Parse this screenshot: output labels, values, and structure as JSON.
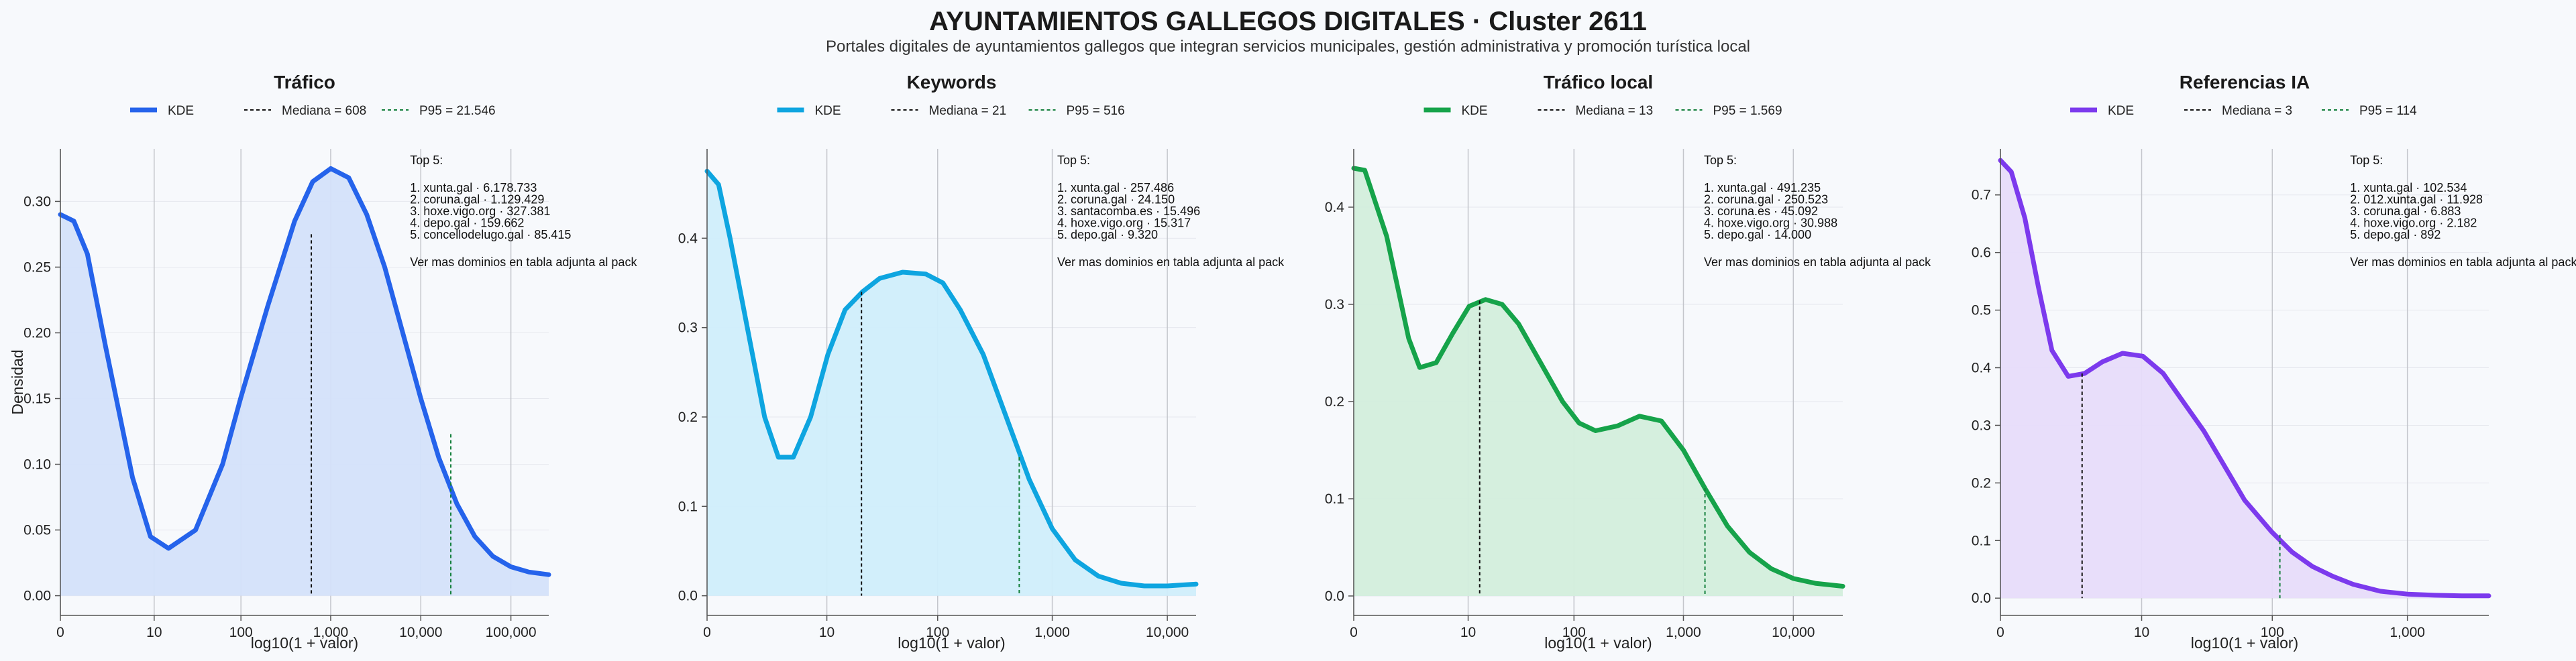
{
  "header": {
    "title": "AYUNTAMIENTOS GALLEGOS DIGITALES · Cluster 2611",
    "subtitle": "Portales digitales de ayuntamientos gallegos que integran servicios municipales, gestión administrativa y promoción turística local"
  },
  "chart_data": [
    {
      "type": "area",
      "title": "Tráfico",
      "xlabel": "log10(1 + valor)",
      "ylabel": "Densidad",
      "color": "#2563eb",
      "fill": "#d4e1fa",
      "xlim": [
        0,
        5.42
      ],
      "ylim": [
        -0.015,
        0.34
      ],
      "xticks": [
        0,
        1.041,
        2.004,
        3.0,
        4.0,
        5.0
      ],
      "xtick_labels": [
        "0",
        "10",
        "100",
        "1,000",
        "10,000",
        "100,000"
      ],
      "yticks": [
        0,
        0.05,
        0.1,
        0.15,
        0.2,
        0.25,
        0.3
      ],
      "ytick_labels": [
        "0.00",
        "0.05",
        "0.10",
        "0.15",
        "0.20",
        "0.25",
        "0.30"
      ],
      "series": [
        {
          "name": "KDE",
          "x": [
            0,
            0.15,
            0.3,
            0.5,
            0.8,
            1.0,
            1.2,
            1.5,
            1.8,
            2.0,
            2.3,
            2.6,
            2.8,
            3.0,
            3.2,
            3.4,
            3.6,
            3.8,
            4.0,
            4.2,
            4.4,
            4.6,
            4.8,
            5.0,
            5.2,
            5.42
          ],
          "y": [
            0.29,
            0.285,
            0.26,
            0.19,
            0.09,
            0.045,
            0.036,
            0.05,
            0.1,
            0.15,
            0.22,
            0.285,
            0.315,
            0.325,
            0.318,
            0.29,
            0.25,
            0.2,
            0.15,
            0.105,
            0.07,
            0.045,
            0.03,
            0.022,
            0.018,
            0.016
          ]
        }
      ],
      "median": {
        "label": "Mediana = 608",
        "x": 2.785,
        "y": 0.275
      },
      "p95": {
        "label": "P95 = 21.546",
        "x": 4.333,
        "y": 0.123
      },
      "annotation": {
        "heading": "Top 5:",
        "lines": [
          "1. xunta.gal · 6.178.733",
          "2. coruna.gal · 1.129.429",
          "3. hoxe.vigo.org · 327.381",
          "4. depo.gal · 159.662",
          "5. concellodelugo.gal · 85.415"
        ],
        "footer": "Ver mas dominios en tabla adjunta al pack"
      }
    },
    {
      "type": "area",
      "title": "Keywords",
      "xlabel": "log10(1 + valor)",
      "ylabel": "",
      "color": "#0ea5e0",
      "fill": "#d0eefb",
      "xlim": [
        0,
        4.25
      ],
      "ylim": [
        -0.022,
        0.5
      ],
      "xticks": [
        0,
        1.041,
        2.004,
        3.0,
        4.0
      ],
      "xtick_labels": [
        "0",
        "10",
        "100",
        "1,000",
        "10,000"
      ],
      "yticks": [
        0,
        0.1,
        0.2,
        0.3,
        0.4
      ],
      "ytick_labels": [
        "0.0",
        "0.1",
        "0.2",
        "0.3",
        "0.4"
      ],
      "series": [
        {
          "name": "KDE",
          "x": [
            0,
            0.1,
            0.2,
            0.35,
            0.5,
            0.62,
            0.75,
            0.9,
            1.05,
            1.2,
            1.35,
            1.5,
            1.7,
            1.9,
            2.05,
            2.2,
            2.4,
            2.6,
            2.8,
            3.0,
            3.2,
            3.4,
            3.6,
            3.8,
            4.0,
            4.25
          ],
          "y": [
            0.475,
            0.46,
            0.4,
            0.3,
            0.2,
            0.155,
            0.155,
            0.2,
            0.27,
            0.32,
            0.34,
            0.355,
            0.362,
            0.36,
            0.35,
            0.32,
            0.27,
            0.2,
            0.13,
            0.075,
            0.04,
            0.022,
            0.014,
            0.011,
            0.011,
            0.013
          ]
        }
      ],
      "median": {
        "label": "Mediana = 21",
        "x": 1.342,
        "y": 0.34
      },
      "p95": {
        "label": "P95 = 516",
        "x": 2.713,
        "y": 0.155
      },
      "annotation": {
        "heading": "Top 5:",
        "lines": [
          "1. xunta.gal · 257.486",
          "2. coruna.gal · 24.150",
          "3. santacomba.es · 15.496",
          "4. hoxe.vigo.org · 15.317",
          "5. depo.gal · 9.320"
        ],
        "footer": "Ver mas dominios en tabla adjunta al pack"
      }
    },
    {
      "type": "area",
      "title": "Tráfico local",
      "xlabel": "log10(1 + valor)",
      "ylabel": "",
      "color": "#16a34a",
      "fill": "#d3eedc",
      "xlim": [
        0,
        4.45
      ],
      "ylim": [
        -0.02,
        0.46
      ],
      "xticks": [
        0,
        1.041,
        2.004,
        3.0,
        4.0
      ],
      "xtick_labels": [
        "0",
        "10",
        "100",
        "1,000",
        "10,000"
      ],
      "yticks": [
        0,
        0.1,
        0.2,
        0.3,
        0.4
      ],
      "ytick_labels": [
        "0.0",
        "0.1",
        "0.2",
        "0.3",
        "0.4"
      ],
      "series": [
        {
          "name": "KDE",
          "x": [
            0,
            0.1,
            0.3,
            0.5,
            0.6,
            0.75,
            0.9,
            1.05,
            1.2,
            1.35,
            1.5,
            1.7,
            1.9,
            2.05,
            2.2,
            2.4,
            2.6,
            2.8,
            3.0,
            3.2,
            3.4,
            3.6,
            3.8,
            4.0,
            4.2,
            4.45
          ],
          "y": [
            0.44,
            0.438,
            0.37,
            0.265,
            0.235,
            0.24,
            0.27,
            0.298,
            0.305,
            0.3,
            0.28,
            0.24,
            0.2,
            0.178,
            0.17,
            0.175,
            0.185,
            0.18,
            0.15,
            0.11,
            0.072,
            0.045,
            0.028,
            0.018,
            0.013,
            0.01
          ]
        }
      ],
      "median": {
        "label": "Mediana = 13",
        "x": 1.146,
        "y": 0.304
      },
      "p95": {
        "label": "P95 = 1.569",
        "x": 3.196,
        "y": 0.111
      },
      "annotation": {
        "heading": "Top 5:",
        "lines": [
          "1. xunta.gal · 491.235",
          "2. coruna.gal · 250.523",
          "3. coruna.es · 45.092",
          "4. hoxe.vigo.org · 30.988",
          "5. depo.gal · 14.000"
        ],
        "footer": "Ver mas dominios en tabla adjunta al pack"
      }
    },
    {
      "type": "area",
      "title": "Referencias IA",
      "xlabel": "log10(1 + valor)",
      "ylabel": "",
      "color": "#7c3aed",
      "fill": "#e7dcfa",
      "xlim": [
        0,
        3.6
      ],
      "ylim": [
        -0.03,
        0.78
      ],
      "xticks": [
        0,
        1.041,
        2.004,
        3.0
      ],
      "xtick_labels": [
        "0",
        "10",
        "100",
        "1,000"
      ],
      "yticks": [
        0,
        0.1,
        0.2,
        0.3,
        0.4,
        0.5,
        0.6,
        0.7
      ],
      "ytick_labels": [
        "0.0",
        "0.1",
        "0.2",
        "0.3",
        "0.4",
        "0.5",
        "0.6",
        "0.7"
      ],
      "series": [
        {
          "name": "KDE",
          "x": [
            0,
            0.08,
            0.18,
            0.28,
            0.38,
            0.5,
            0.62,
            0.75,
            0.9,
            1.05,
            1.2,
            1.35,
            1.5,
            1.65,
            1.8,
            2.0,
            2.15,
            2.3,
            2.45,
            2.6,
            2.8,
            3.0,
            3.2,
            3.4,
            3.6
          ],
          "y": [
            0.76,
            0.74,
            0.66,
            0.54,
            0.43,
            0.385,
            0.39,
            0.41,
            0.425,
            0.42,
            0.39,
            0.34,
            0.29,
            0.23,
            0.17,
            0.115,
            0.08,
            0.055,
            0.038,
            0.024,
            0.012,
            0.007,
            0.005,
            0.004,
            0.004
          ]
        }
      ],
      "median": {
        "label": "Mediana = 3",
        "x": 0.602,
        "y": 0.39
      },
      "p95": {
        "label": "P95 = 114",
        "x": 2.06,
        "y": 0.11
      },
      "annotation": {
        "heading": "Top 5:",
        "lines": [
          "1. xunta.gal · 102.534",
          "2. 012.xunta.gal · 11.928",
          "3. coruna.gal · 6.883",
          "4. hoxe.vigo.org · 2.182",
          "5. depo.gal · 892"
        ],
        "footer": "Ver mas dominios en tabla adjunta al pack"
      }
    }
  ]
}
